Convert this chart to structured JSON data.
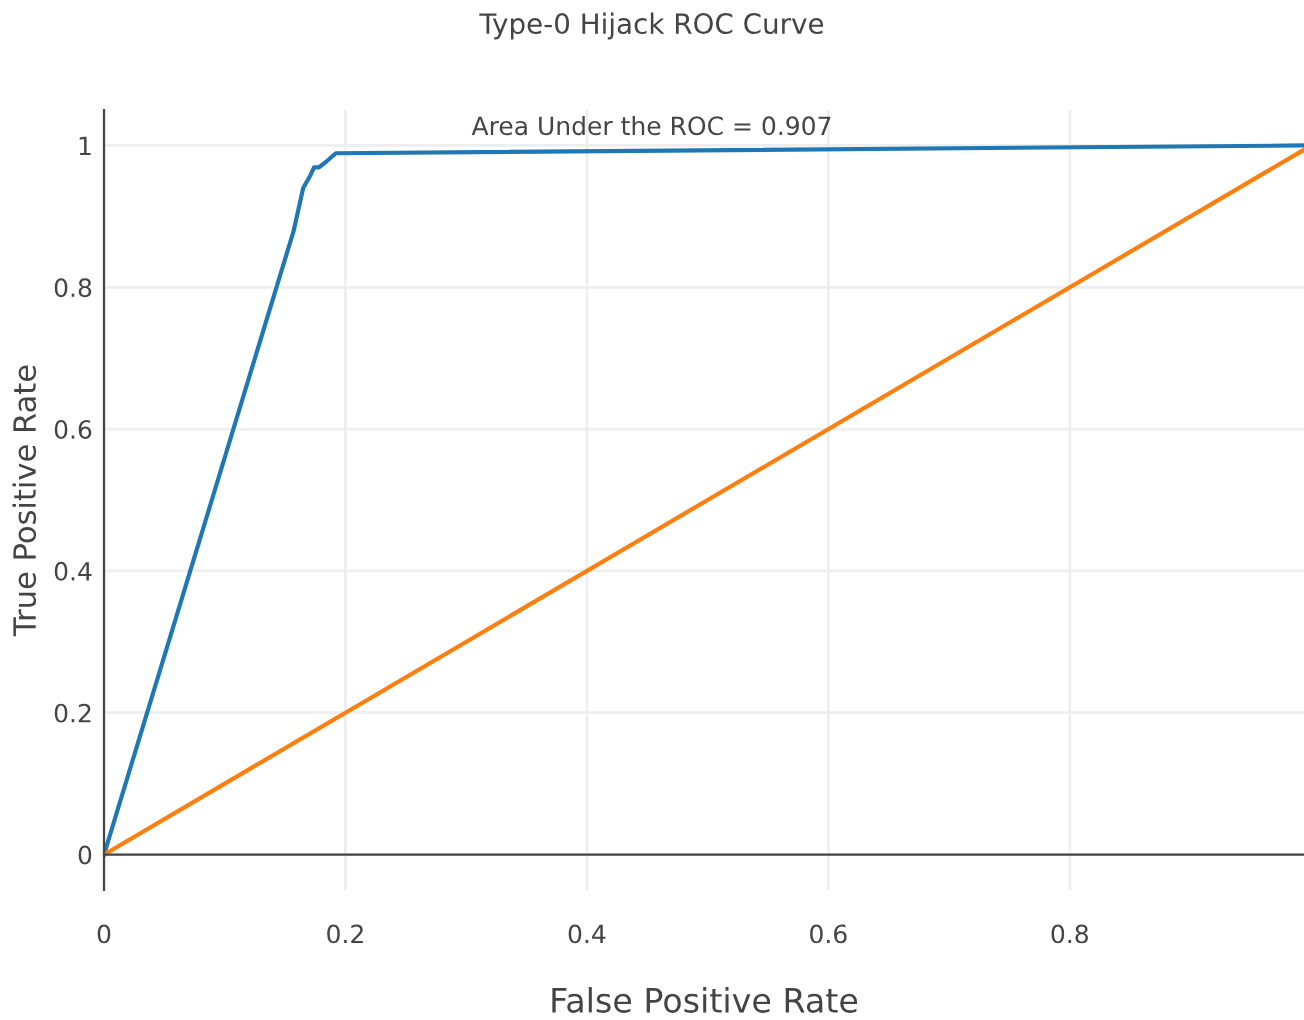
{
  "chart_data": {
    "type": "line",
    "title": "Type-0 Hijack ROC Curve",
    "xlabel": "False Positive Rate",
    "ylabel": "True Positive Rate",
    "annotations": [
      "Area Under the ROC = 0.907"
    ],
    "series": [
      {
        "color": "#1f77b4",
        "x": [
          0,
          0.157,
          0.165,
          0.171,
          0.174,
          0.178,
          0.184,
          0.188,
          0.192,
          0.994
        ],
        "values": [
          0,
          0.879,
          0.94,
          0.958,
          0.969,
          0.969,
          0.977,
          0.983,
          0.989,
          1.0
        ]
      },
      {
        "color": "#ff7f0e",
        "x": [
          0,
          0.994
        ],
        "values": [
          0,
          0.994
        ]
      }
    ],
    "xlim": [
      0,
      0.994
    ],
    "ylim": [
      -0.05,
      1.05
    ],
    "xticks": [
      0,
      0.2,
      0.4,
      0.6,
      0.8
    ],
    "yticks": [
      0,
      0.2,
      0.4,
      0.6,
      0.8,
      1
    ],
    "grid": true,
    "legend": false
  }
}
